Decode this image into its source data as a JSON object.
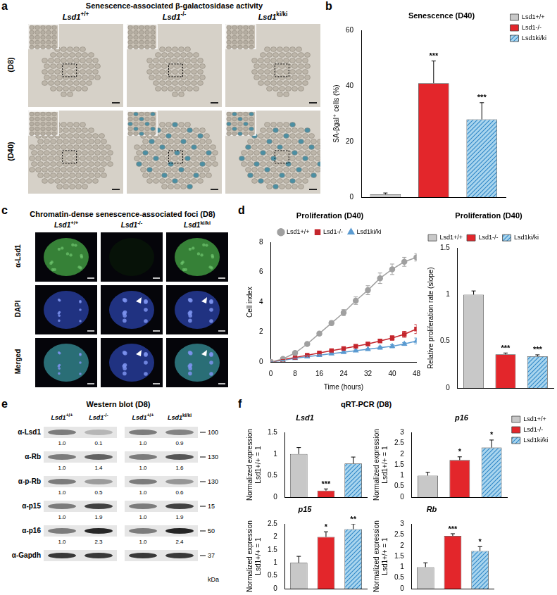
{
  "figure": {
    "panels": {
      "a": {
        "letter": "a",
        "title": "Senescence-associated β-galactosidase activity",
        "columns": [
          "Lsd1+/+",
          "Lsd1-/-",
          "Lsd1ki/ki"
        ],
        "rows": [
          "(D8)",
          "(D40)"
        ]
      },
      "b": {
        "letter": "b"
      },
      "c": {
        "letter": "c",
        "title": "Chromatin-dense senescence-associated foci (D8)",
        "columns": [
          "Lsd1+/+",
          "Lsd1-/-",
          "Lsd1ki/ki"
        ],
        "rows": [
          "α-Lsd1",
          "DAPI",
          "Merged"
        ]
      },
      "d": {
        "letter": "d"
      },
      "e": {
        "letter": "e",
        "title": "Western blot (D8)",
        "lanes": [
          [
            "Lsd1+/+",
            "Lsd1-/-"
          ],
          [
            "Lsd1+/+",
            "Lsd1ki/ki"
          ]
        ],
        "rows": [
          {
            "label": "α-Lsd1",
            "values": [
              [
                "1.0",
                "0.1"
              ],
              [
                "1.0",
                "0.9"
              ]
            ],
            "mw": "100"
          },
          {
            "label": "α-Rb",
            "values": [
              [
                "1.0",
                "1.4"
              ],
              [
                "1.0",
                "1.6"
              ]
            ],
            "mw": "130"
          },
          {
            "label": "α-p-Rb",
            "values": [
              [
                "1.0",
                "0.5"
              ],
              [
                "1.0",
                "0.6"
              ]
            ],
            "mw": "130"
          },
          {
            "label": "α-p15",
            "values": [
              [
                "1.0",
                "1.9"
              ],
              [
                "1.0",
                "1.9"
              ]
            ],
            "mw": "15"
          },
          {
            "label": "α-p16",
            "values": [
              [
                "1.0",
                "2.3"
              ],
              [
                "1.0",
                "2.4"
              ]
            ],
            "mw": "50"
          },
          {
            "label": "α-Gapdh",
            "values": null,
            "mw": "37"
          }
        ],
        "unit": "kDa"
      },
      "f": {
        "letter": "f",
        "title": "qRT-PCR (D8)"
      }
    }
  },
  "chart_data": [
    {
      "panel": "b",
      "type": "bar",
      "title": "Senescence (D40)",
      "ylabel": "SA-βgal⁺ cells (%)",
      "categories": [
        "Lsd1+/+",
        "Lsd1-/-",
        "Lsd1ki/ki"
      ],
      "values": [
        1,
        41,
        28
      ],
      "errors": [
        0.5,
        8,
        6
      ],
      "annotations": [
        null,
        "***",
        "***"
      ],
      "colors": [
        "#c8c8c8",
        "#e3262b",
        "#a9d5ee"
      ],
      "ylim": [
        0,
        60
      ],
      "yticks": [
        0,
        20,
        40,
        60
      ],
      "grid": false,
      "legend": "right",
      "tick_labels": "y"
    },
    {
      "panel": "d",
      "type": "line",
      "title": "Proliferation (D40)",
      "xlabel": "Time (hours)",
      "ylabel": "Cell index",
      "x": [
        0,
        4,
        8,
        12,
        16,
        20,
        24,
        28,
        32,
        36,
        40,
        44,
        48
      ],
      "series": [
        {
          "name": "Lsd1+/+",
          "color": "#a0a0a0",
          "marker": "circle",
          "values": [
            0,
            0.2,
            0.6,
            1.2,
            1.9,
            2.6,
            3.3,
            4.1,
            4.8,
            5.6,
            6.2,
            6.7,
            7.0
          ],
          "errors": [
            0,
            0.05,
            0.05,
            0.1,
            0.1,
            0.15,
            0.2,
            0.25,
            0.3,
            0.35,
            0.35,
            0.3,
            0.25
          ]
        },
        {
          "name": "Lsd1-/-",
          "color": "#c4262d",
          "marker": "square",
          "values": [
            0,
            0.15,
            0.3,
            0.45,
            0.6,
            0.75,
            0.9,
            1.05,
            1.2,
            1.4,
            1.6,
            1.85,
            2.2
          ],
          "errors": [
            0,
            0,
            0,
            0.05,
            0.05,
            0.05,
            0.1,
            0.1,
            0.1,
            0.1,
            0.15,
            0.2,
            0.3
          ]
        },
        {
          "name": "Lsd1ki/ki",
          "color": "#5b9bd1",
          "marker": "triangle",
          "values": [
            0,
            0.1,
            0.25,
            0.35,
            0.45,
            0.55,
            0.65,
            0.75,
            0.85,
            0.95,
            1.05,
            1.2,
            1.4
          ],
          "errors": [
            0,
            0,
            0,
            0.05,
            0.05,
            0.05,
            0.05,
            0.05,
            0.05,
            0.1,
            0.1,
            0.1,
            0.2
          ]
        }
      ],
      "xlim": [
        0,
        48
      ],
      "xticks": [
        0,
        8,
        16,
        24,
        32,
        40,
        48
      ],
      "ylim": [
        0,
        8
      ],
      "yticks": [
        0,
        2,
        4,
        6,
        8
      ],
      "grid": false,
      "legend": "top"
    },
    {
      "panel": "d",
      "type": "bar",
      "title": "Proliferation (D40)",
      "ylabel": "Relative proliferation rate (slope)",
      "categories": [
        "Lsd1+/+",
        "Lsd1-/-",
        "Lsd1ki/ki"
      ],
      "values": [
        1,
        0.36,
        0.34
      ],
      "errors": [
        0.04,
        0.015,
        0.015
      ],
      "annotations": [
        null,
        "***",
        "***"
      ],
      "colors": [
        "#c8c8c8",
        "#e3262b",
        "#a9d5ee"
      ],
      "ylim": [
        0,
        1.5
      ],
      "yticks": [
        0,
        0.5,
        1,
        1.5
      ],
      "grid": false,
      "legend": "top",
      "tick_labels": "y"
    },
    {
      "panel": "f",
      "type": "bar",
      "title": "Lsd1",
      "ylabel": [
        "Normalized expression",
        "Lsd1+/+ = 1"
      ],
      "categories": [
        "Lsd1+/+",
        "Lsd1-/-",
        "Lsd1ki/ki"
      ],
      "values": [
        1,
        0.15,
        0.78
      ],
      "errors": [
        0.15,
        0.04,
        0.15
      ],
      "annotations": [
        null,
        "***",
        null
      ],
      "colors": [
        "#c8c8c8",
        "#e3262b",
        "#a9d5ee"
      ],
      "ylim": [
        0,
        1.5
      ],
      "yticks": [
        0,
        0.5,
        1,
        1.5
      ],
      "grid": false,
      "tick_labels": "y"
    },
    {
      "panel": "f",
      "type": "bar",
      "title": "p16",
      "ylabel": [
        "Normalized expression",
        "Lsd1+/+ = 1"
      ],
      "categories": [
        "Lsd1+/+",
        "Lsd1-/-",
        "Lsd1ki/ki"
      ],
      "values": [
        1,
        1.72,
        2.3
      ],
      "errors": [
        0.15,
        0.15,
        0.35
      ],
      "annotations": [
        null,
        "*",
        "*"
      ],
      "colors": [
        "#c8c8c8",
        "#e3262b",
        "#a9d5ee"
      ],
      "ylim": [
        0,
        3
      ],
      "yticks": [
        0,
        0.5,
        1,
        1.5,
        2,
        2.5,
        3
      ],
      "grid": false,
      "legend": "right",
      "tick_labels": "y"
    },
    {
      "panel": "f",
      "type": "bar",
      "title": "p15",
      "ylabel": [
        "Normalized expression",
        "Lsd1+/+ = 1"
      ],
      "categories": [
        "Lsd1+/+",
        "Lsd1-/-",
        "Lsd1ki/ki"
      ],
      "values": [
        1,
        2,
        2.3
      ],
      "errors": [
        0.25,
        0.2,
        0.2
      ],
      "annotations": [
        null,
        "*",
        "**"
      ],
      "colors": [
        "#c8c8c8",
        "#e3262b",
        "#a9d5ee"
      ],
      "ylim": [
        0,
        2.5
      ],
      "yticks": [
        0,
        0.5,
        1,
        1.5,
        2,
        2.5
      ],
      "grid": false,
      "tick_labels": "y"
    },
    {
      "panel": "f",
      "type": "bar",
      "title": "Rb",
      "ylabel": [
        "Normalized expression",
        "Lsd1+/+ = 1"
      ],
      "categories": [
        "Lsd1+/+",
        "Lsd1-/-",
        "Lsd1ki/ki"
      ],
      "values": [
        1,
        2.45,
        1.75
      ],
      "errors": [
        0.2,
        0.1,
        0.2
      ],
      "annotations": [
        null,
        "***",
        "*"
      ],
      "colors": [
        "#c8c8c8",
        "#e3262b",
        "#a9d5ee"
      ],
      "ylim": [
        0,
        3
      ],
      "yticks": [
        0,
        0.5,
        1,
        1.5,
        2,
        2.5,
        3
      ],
      "grid": false,
      "tick_labels": "y"
    }
  ]
}
